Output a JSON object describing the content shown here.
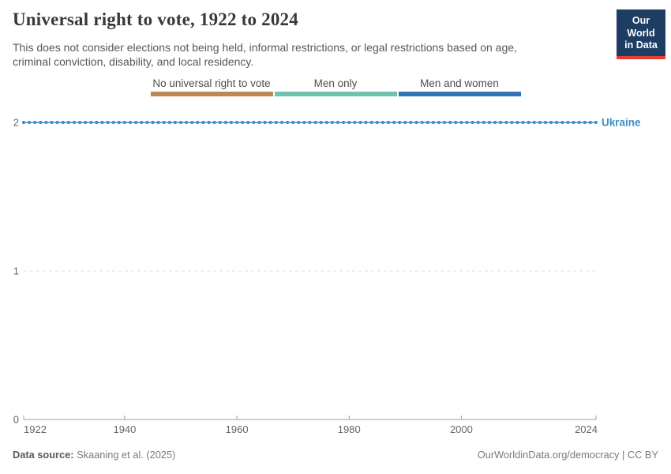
{
  "header": {
    "title": "Universal right to vote, 1922 to 2024",
    "subtitle": "This does not consider elections not being held, informal restrictions, or legal restrictions based on age, criminal conviction, disability, and local residency.",
    "logo": {
      "line1": "Our World",
      "line2": "in Data",
      "bg_color": "#1d3d63",
      "accent_color": "#e63e36"
    }
  },
  "legend": {
    "items": [
      {
        "label": "No universal right to vote",
        "value": 0,
        "color": "#bc8a51"
      },
      {
        "label": "Men only",
        "value": 1,
        "color": "#6fc3ad"
      },
      {
        "label": "Men and women",
        "value": 2,
        "color": "#3078b5"
      }
    ]
  },
  "chart_data": {
    "type": "line",
    "title": "Universal right to vote, 1922 to 2024",
    "xlabel": "",
    "ylabel": "",
    "xlim": [
      1922,
      2024
    ],
    "ylim": [
      0,
      2
    ],
    "x_ticks": [
      1922,
      1940,
      1960,
      1980,
      2000,
      2024
    ],
    "y_ticks": [
      0,
      1,
      2
    ],
    "grid": "dashed horizontal gridlines at y=1 and y=2; solid x-axis at y=0",
    "value_meaning": {
      "0": "No universal right to vote",
      "1": "Men only",
      "2": "Men and women"
    },
    "series": [
      {
        "name": "Ukraine",
        "color": "#3d8ec5",
        "x_start": 1922,
        "x_end": 2024,
        "x_step": 1,
        "constant_value": 2,
        "note": "Ukraine holds value 2 (Men and women) for every year from 1922 through 2024; rendered as a dotted marker line at y=2"
      }
    ],
    "legend_position": "top center"
  },
  "footer": {
    "datasource_label": "Data source:",
    "datasource_value": "Skaaning et al. (2025)",
    "link": "OurWorldinData.org/democracy | CC BY"
  }
}
